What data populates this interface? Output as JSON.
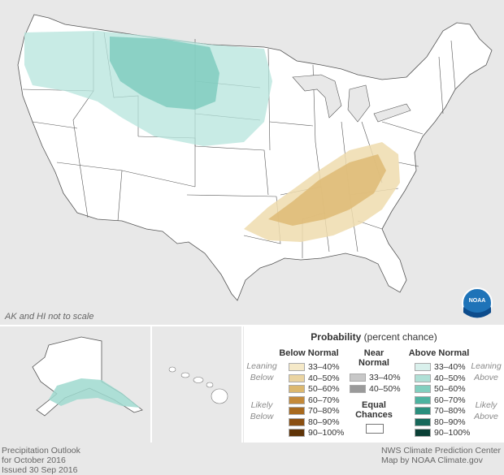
{
  "map": {
    "scale_note": "AK and HI not to scale",
    "colors": {
      "land": "#ffffff",
      "water": "#e8e8e8",
      "border": "#444444"
    }
  },
  "legend": {
    "title_bold": "Probability",
    "title_rest": " (percent chance)",
    "below_normal": {
      "header": "Below Normal",
      "leaning": "Leaning Below",
      "likely": "Likely Below",
      "items": [
        {
          "label": "33–40%",
          "color": "#f5e9c8"
        },
        {
          "label": "40–50%",
          "color": "#ead4a2"
        },
        {
          "label": "50–60%",
          "color": "#dcb86f"
        },
        {
          "label": "60–70%",
          "color": "#c48a3a"
        },
        {
          "label": "70–80%",
          "color": "#a86a1f"
        },
        {
          "label": "80–90%",
          "color": "#8a4f12"
        },
        {
          "label": "90–100%",
          "color": "#5f3408"
        }
      ]
    },
    "near_normal": {
      "header_line1": "Near",
      "header_line2": "Normal",
      "items": [
        {
          "label": "33–40%",
          "color": "#c7c7c7"
        },
        {
          "label": "40–50%",
          "color": "#9a9a9a"
        }
      ]
    },
    "equal_chances": {
      "line1": "Equal",
      "line2": "Chances",
      "color": "#ffffff"
    },
    "above_normal": {
      "header": "Above Normal",
      "leaning": "Leaning Above",
      "likely": "Likely Above",
      "items": [
        {
          "label": "33–40%",
          "color": "#d9f0ec"
        },
        {
          "label": "40–50%",
          "color": "#b0e0d6"
        },
        {
          "label": "50–60%",
          "color": "#82cfbf"
        },
        {
          "label": "60–70%",
          "color": "#4db3a0"
        },
        {
          "label": "70–80%",
          "color": "#2b8f7d"
        },
        {
          "label": "80–90%",
          "color": "#17685a"
        },
        {
          "label": "90–100%",
          "color": "#0a4036"
        }
      ]
    }
  },
  "footer": {
    "left_line1": "Precipitation Outlook",
    "left_line2": "for October 2016",
    "left_line3": "Issued 30 Sep 2016",
    "right_line1": "NWS Climate Prediction Center",
    "right_line2": "Map by NOAA Climate.gov"
  },
  "logo": {
    "text": "NOAA"
  }
}
